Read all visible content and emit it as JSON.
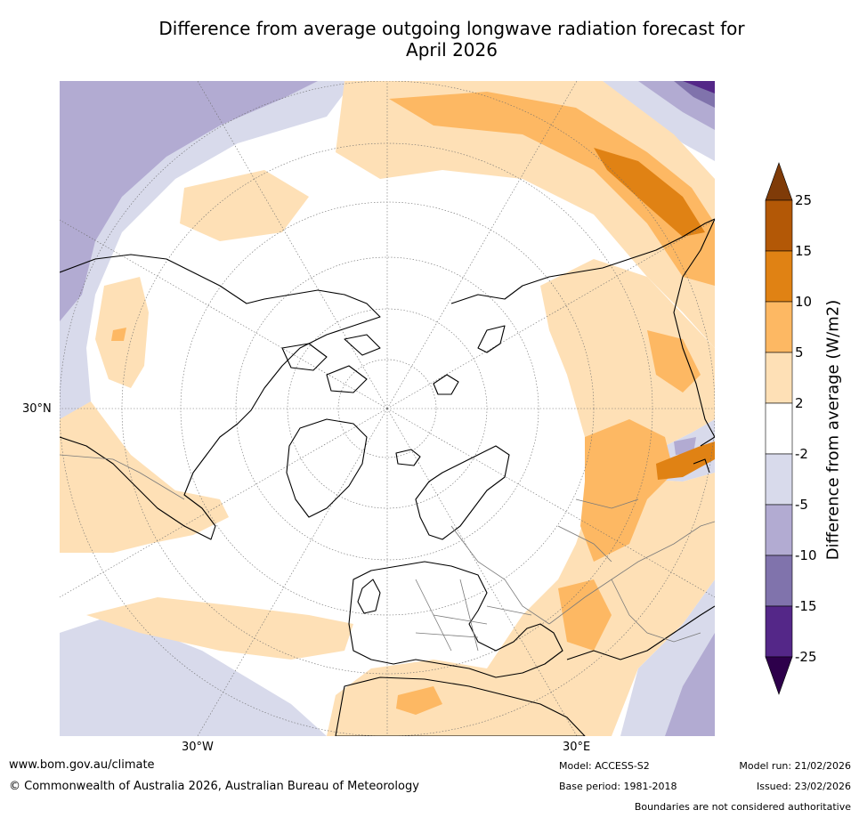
{
  "title_line1": "Difference from average outgoing longwave radiation forecast for",
  "title_line2": "April 2026",
  "axis_labels": {
    "lat": "30°N",
    "lon_west": "30°W",
    "lon_east": "30°E"
  },
  "colorbar": {
    "label": "Difference from average (W/m2)",
    "ticks": [
      "25",
      "15",
      "10",
      "5",
      "2",
      "-2",
      "-5",
      "-10",
      "-15",
      "-25"
    ],
    "colors": {
      "c_15_25": "#b35806",
      "c_10_15": "#e08214",
      "c_5_10": "#fdb863",
      "c_2_5": "#fee0b6",
      "c_m2_2": "#ffffff",
      "c_m5_m2": "#d8daeb",
      "c_m10_m5": "#b2abd2",
      "c_m15_m10": "#8073ac",
      "c_m25_m15": "#542788",
      "over": "#7f3b08",
      "under": "#2d004b"
    }
  },
  "footer": {
    "url": "www.bom.gov.au/climate",
    "copyright": "© Commonwealth of Australia 2026, Australian Bureau of Meteorology",
    "model": "Model: ACCESS-S2",
    "base_period": "Base period: 1981-2018",
    "model_run": "Model run: 21/02/2026",
    "issued": "Issued: 23/02/2026",
    "disclaimer": "Boundaries are not considered authoritative"
  }
}
